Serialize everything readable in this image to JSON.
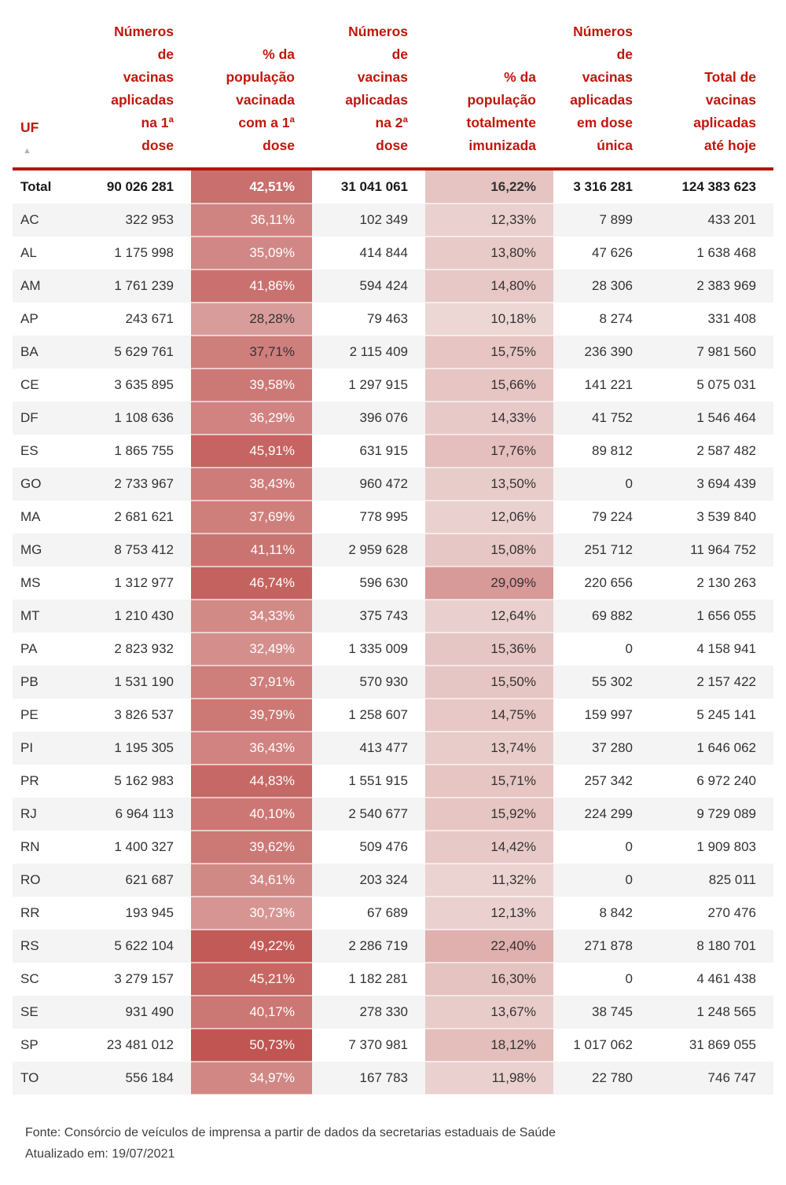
{
  "chart_data": {
    "type": "table",
    "sort_indicator": "▲",
    "columns": [
      {
        "key": "uf",
        "label_lines": [
          "UF"
        ]
      },
      {
        "key": "dose1",
        "label_lines": [
          "Números",
          "de",
          "vacinas",
          "aplicadas",
          "na 1ª",
          "dose"
        ]
      },
      {
        "key": "pct1",
        "label_lines": [
          "% da",
          "população",
          "vacinada",
          "com a 1ª",
          "dose"
        ]
      },
      {
        "key": "dose2",
        "label_lines": [
          "Números",
          "de",
          "vacinas",
          "aplicadas",
          "na 2ª",
          "dose"
        ]
      },
      {
        "key": "pct2",
        "label_lines": [
          "% da",
          "população",
          "totalmente",
          "imunizada"
        ]
      },
      {
        "key": "unica",
        "label_lines": [
          "Números",
          "de",
          "vacinas",
          "aplicadas",
          "em dose",
          "única"
        ]
      },
      {
        "key": "total",
        "label_lines": [
          "Total de",
          "vacinas",
          "aplicadas",
          "até hoje"
        ]
      }
    ],
    "total_row": {
      "uf": "Total",
      "dose1": "90 026 281",
      "pct1": "42,51%",
      "dose2": "31 041 061",
      "pct2": "16,22%",
      "unica": "3 316 281",
      "total": "124 383 623"
    },
    "rows": [
      {
        "uf": "AC",
        "dose1": "322 953",
        "pct1": "36,11%",
        "dose2": "102 349",
        "pct2": "12,33%",
        "unica": "7 899",
        "total": "433 201"
      },
      {
        "uf": "AL",
        "dose1": "1 175 998",
        "pct1": "35,09%",
        "dose2": "414 844",
        "pct2": "13,80%",
        "unica": "47 626",
        "total": "1 638 468"
      },
      {
        "uf": "AM",
        "dose1": "1 761 239",
        "pct1": "41,86%",
        "dose2": "594 424",
        "pct2": "14,80%",
        "unica": "28 306",
        "total": "2 383 969"
      },
      {
        "uf": "AP",
        "dose1": "243 671",
        "pct1": "28,28%",
        "dose2": "79 463",
        "pct2": "10,18%",
        "unica": "8 274",
        "total": "331 408"
      },
      {
        "uf": "BA",
        "dose1": "5 629 761",
        "pct1": "37,71%",
        "dose2": "2 115 409",
        "pct2": "15,75%",
        "unica": "236 390",
        "total": "7 981 560"
      },
      {
        "uf": "CE",
        "dose1": "3 635 895",
        "pct1": "39,58%",
        "dose2": "1 297 915",
        "pct2": "15,66%",
        "unica": "141 221",
        "total": "5 075 031"
      },
      {
        "uf": "DF",
        "dose1": "1 108 636",
        "pct1": "36,29%",
        "dose2": "396 076",
        "pct2": "14,33%",
        "unica": "41 752",
        "total": "1 546 464"
      },
      {
        "uf": "ES",
        "dose1": "1 865 755",
        "pct1": "45,91%",
        "dose2": "631 915",
        "pct2": "17,76%",
        "unica": "89 812",
        "total": "2 587 482"
      },
      {
        "uf": "GO",
        "dose1": "2 733 967",
        "pct1": "38,43%",
        "dose2": "960 472",
        "pct2": "13,50%",
        "unica": "0",
        "total": "3 694 439"
      },
      {
        "uf": "MA",
        "dose1": "2 681 621",
        "pct1": "37,69%",
        "dose2": "778 995",
        "pct2": "12,06%",
        "unica": "79 224",
        "total": "3 539 840"
      },
      {
        "uf": "MG",
        "dose1": "8 753 412",
        "pct1": "41,11%",
        "dose2": "2 959 628",
        "pct2": "15,08%",
        "unica": "251 712",
        "total": "11 964 752"
      },
      {
        "uf": "MS",
        "dose1": "1 312 977",
        "pct1": "46,74%",
        "dose2": "596 630",
        "pct2": "29,09%",
        "unica": "220 656",
        "total": "2 130 263"
      },
      {
        "uf": "MT",
        "dose1": "1 210 430",
        "pct1": "34,33%",
        "dose2": "375 743",
        "pct2": "12,64%",
        "unica": "69 882",
        "total": "1 656 055"
      },
      {
        "uf": "PA",
        "dose1": "2 823 932",
        "pct1": "32,49%",
        "dose2": "1 335 009",
        "pct2": "15,36%",
        "unica": "0",
        "total": "4 158 941"
      },
      {
        "uf": "PB",
        "dose1": "1 531 190",
        "pct1": "37,91%",
        "dose2": "570 930",
        "pct2": "15,50%",
        "unica": "55 302",
        "total": "2 157 422"
      },
      {
        "uf": "PE",
        "dose1": "3 826 537",
        "pct1": "39,79%",
        "dose2": "1 258 607",
        "pct2": "14,75%",
        "unica": "159 997",
        "total": "5 245 141"
      },
      {
        "uf": "PI",
        "dose1": "1 195 305",
        "pct1": "36,43%",
        "dose2": "413 477",
        "pct2": "13,74%",
        "unica": "37 280",
        "total": "1 646 062"
      },
      {
        "uf": "PR",
        "dose1": "5 162 983",
        "pct1": "44,83%",
        "dose2": "1 551 915",
        "pct2": "15,71%",
        "unica": "257 342",
        "total": "6 972 240"
      },
      {
        "uf": "RJ",
        "dose1": "6 964 113",
        "pct1": "40,10%",
        "dose2": "2 540 677",
        "pct2": "15,92%",
        "unica": "224 299",
        "total": "9 729 089"
      },
      {
        "uf": "RN",
        "dose1": "1 400 327",
        "pct1": "39,62%",
        "dose2": "509 476",
        "pct2": "14,42%",
        "unica": "0",
        "total": "1 909 803"
      },
      {
        "uf": "RO",
        "dose1": "621 687",
        "pct1": "34,61%",
        "dose2": "203 324",
        "pct2": "11,32%",
        "unica": "0",
        "total": "825 011"
      },
      {
        "uf": "RR",
        "dose1": "193 945",
        "pct1": "30,73%",
        "dose2": "67 689",
        "pct2": "12,13%",
        "unica": "8 842",
        "total": "270 476"
      },
      {
        "uf": "RS",
        "dose1": "5 622 104",
        "pct1": "49,22%",
        "dose2": "2 286 719",
        "pct2": "22,40%",
        "unica": "271 878",
        "total": "8 180 701"
      },
      {
        "uf": "SC",
        "dose1": "3 279 157",
        "pct1": "45,21%",
        "dose2": "1 182 281",
        "pct2": "16,30%",
        "unica": "0",
        "total": "4 461 438"
      },
      {
        "uf": "SE",
        "dose1": "931 490",
        "pct1": "40,17%",
        "dose2": "278 330",
        "pct2": "13,67%",
        "unica": "38 745",
        "total": "1 248 565"
      },
      {
        "uf": "SP",
        "dose1": "23 481 012",
        "pct1": "50,73%",
        "dose2": "7 370 981",
        "pct2": "18,12%",
        "unica": "1 017 062",
        "total": "31 869 055"
      },
      {
        "uf": "TO",
        "dose1": "556 184",
        "pct1": "34,97%",
        "dose2": "167 783",
        "pct2": "11,98%",
        "unica": "22 780",
        "total": "746 747"
      }
    ],
    "heatmap": {
      "min": 10.18,
      "max": 50.73,
      "light_color": "#ecd7d5",
      "dark_color": "#c05552",
      "white_text_threshold": 30,
      "dark_text_overrides": [
        "BA:pct1"
      ]
    },
    "source": "Fonte: Consórcio de veículos de imprensa a partir de dados da secretarias estaduais de Saúde",
    "updated": "Atualizado em: 19/07/2021"
  },
  "colors": {
    "header_text": "#c0170c",
    "header_divider": "#b2150a",
    "row_alt_background": "#f4f4f4",
    "body_text": "#333333",
    "heat_text_light": "#ffffff",
    "heat_text_dark": "#333333",
    "footer_text": "#3e3e3e",
    "sort_arrow": "#b5b5b5"
  }
}
